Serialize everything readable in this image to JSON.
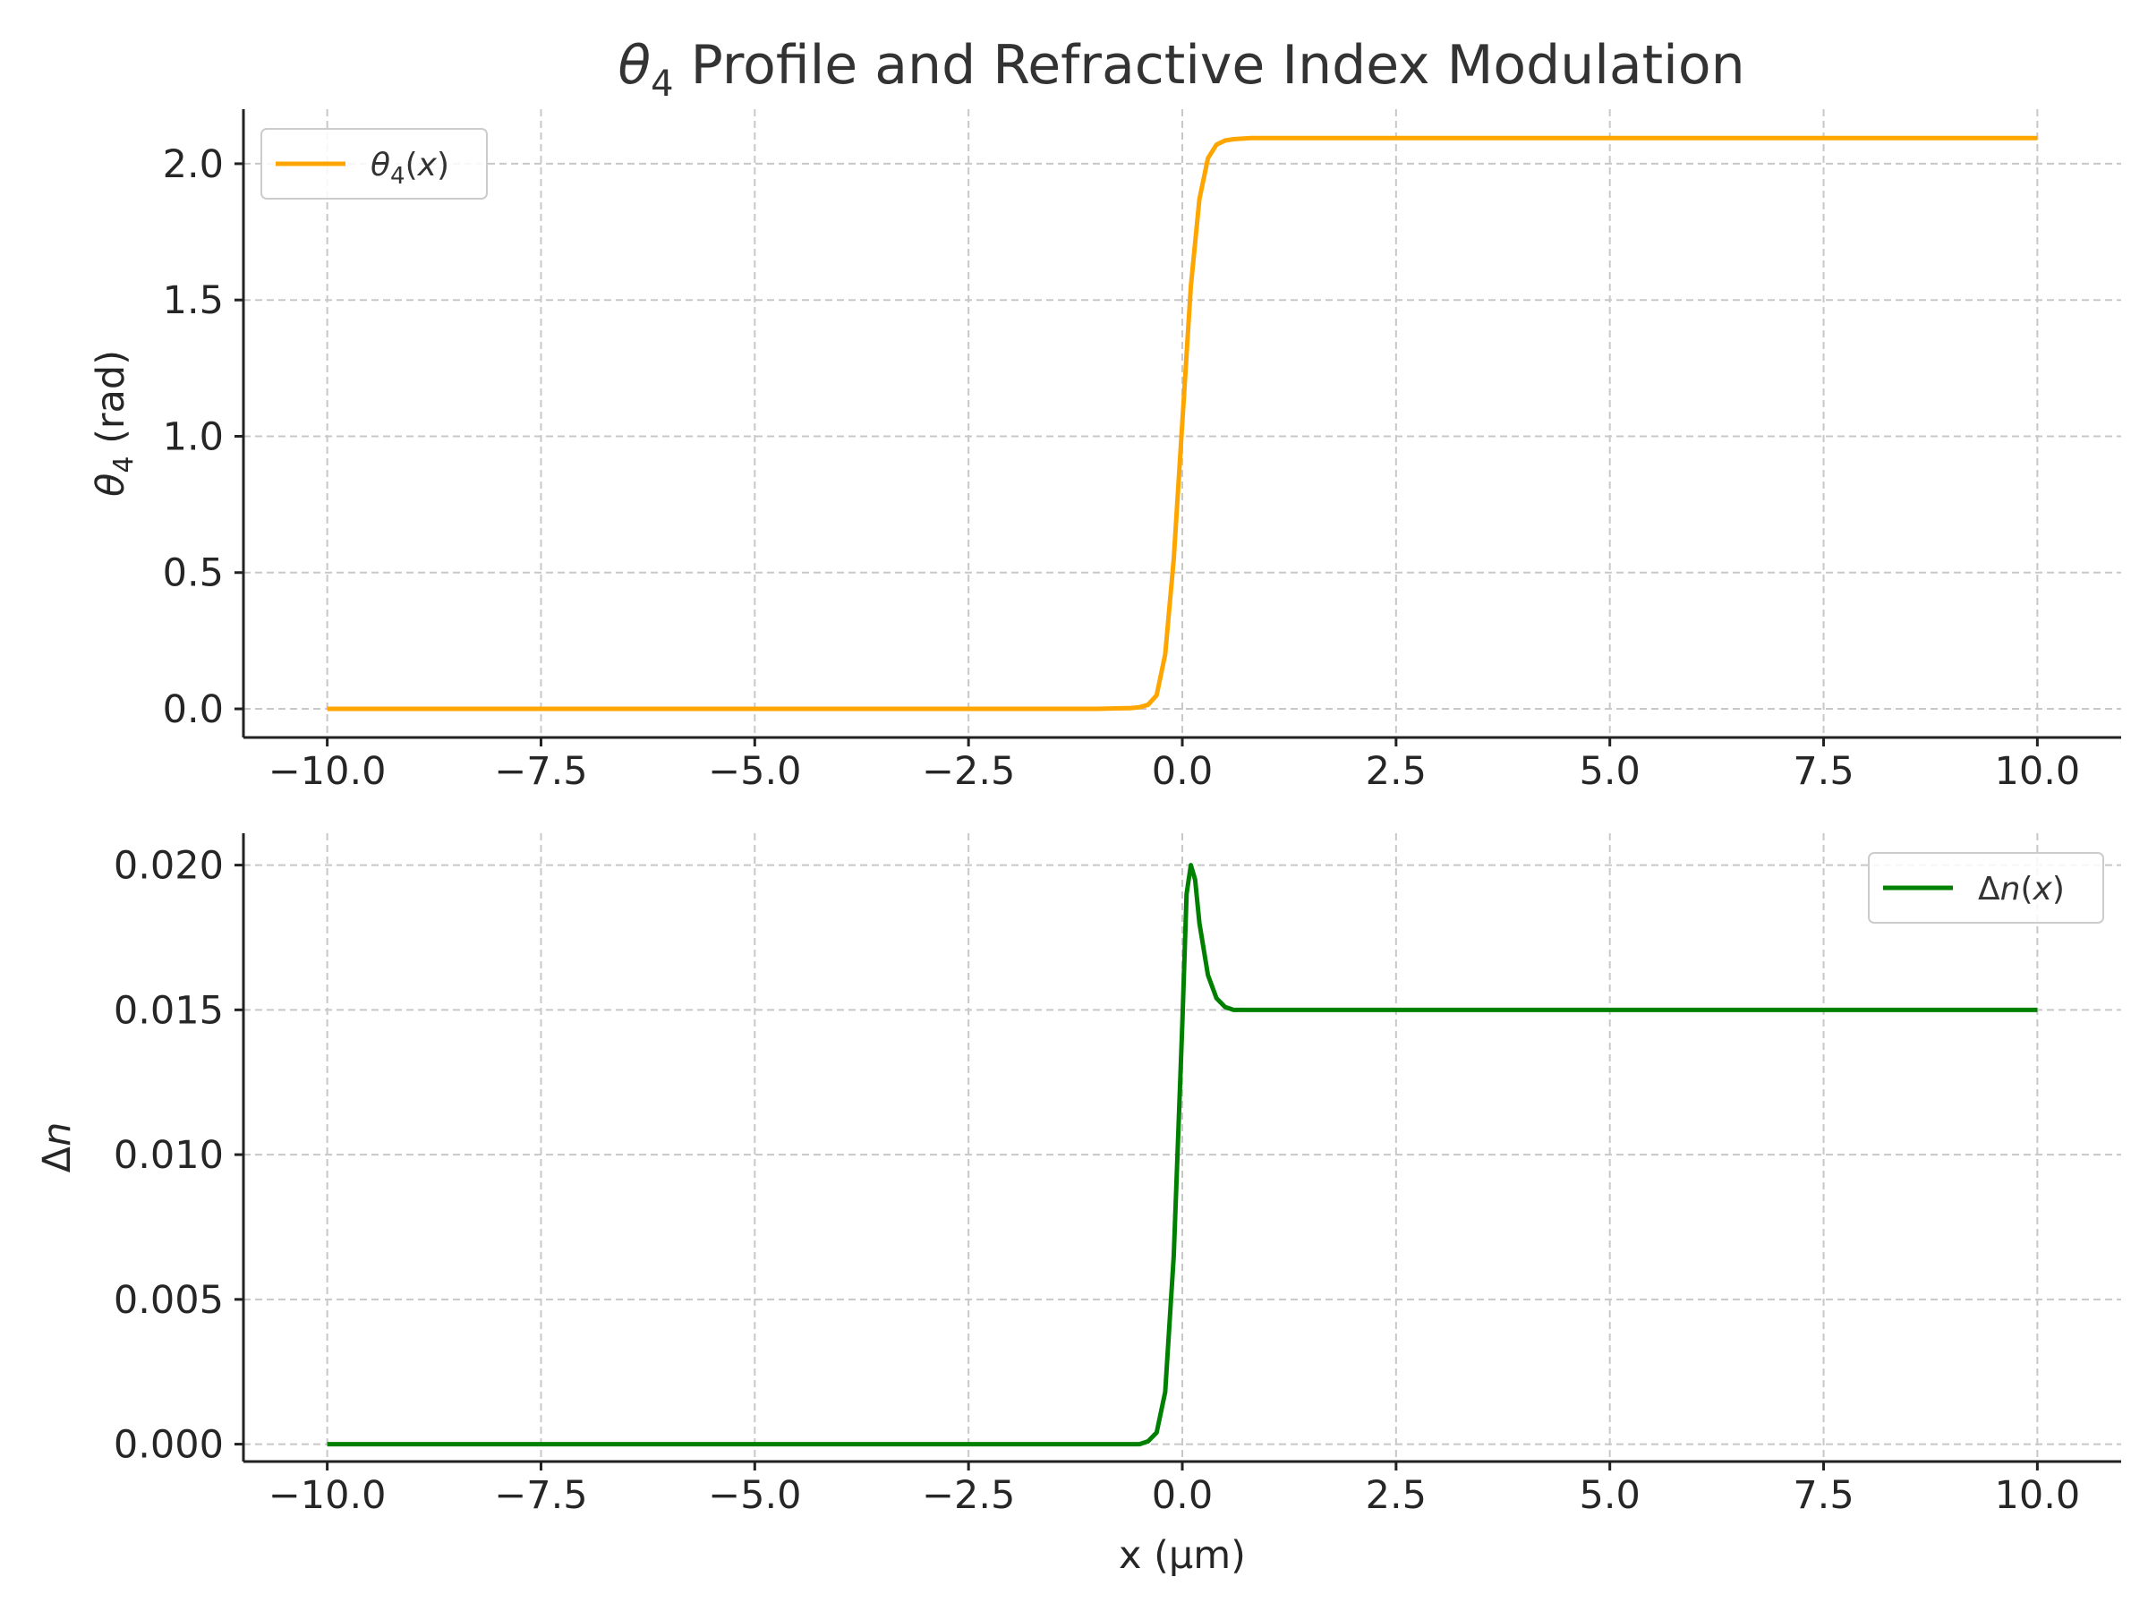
{
  "figure": {
    "title_sym": "θ",
    "title_sub": "4",
    "title_rest": " Profile and Refractive Index Modulation"
  },
  "chart_data": [
    {
      "type": "line",
      "ylabel_sym": "θ",
      "ylabel_sub": "4",
      "ylabel_rest": " (rad)",
      "xlabel": "",
      "xlim": [
        -10.98,
        10.98
      ],
      "ylim": [
        -0.105,
        2.2
      ],
      "xticks": [
        -10.0,
        -7.5,
        -5.0,
        -2.5,
        0.0,
        2.5,
        5.0,
        7.5,
        10.0
      ],
      "xtick_labels": [
        "−10.0",
        "−7.5",
        "−5.0",
        "−2.5",
        "0.0",
        "2.5",
        "5.0",
        "7.5",
        "10.0"
      ],
      "yticks": [
        0.0,
        0.5,
        1.0,
        1.5,
        2.0
      ],
      "ytick_labels": [
        "0.0",
        "0.5",
        "1.0",
        "1.5",
        "2.0"
      ],
      "grid": true,
      "legend_position": "top-left",
      "series": [
        {
          "name_sym": "θ",
          "name_sub": "4",
          "name_rest": "(x)",
          "color": "#FFA500",
          "x": [
            -10.0,
            -2.0,
            -1.0,
            -0.6,
            -0.5,
            -0.4,
            -0.3,
            -0.2,
            -0.1,
            0.0,
            0.1,
            0.2,
            0.3,
            0.4,
            0.5,
            0.6,
            0.8,
            1.0,
            2.0,
            10.0
          ],
          "y": [
            0.0,
            0.0,
            0.0,
            0.003,
            0.006,
            0.015,
            0.05,
            0.2,
            0.55,
            1.05,
            1.55,
            1.87,
            2.02,
            2.07,
            2.085,
            2.09,
            2.094,
            2.094,
            2.094,
            2.094
          ]
        }
      ]
    },
    {
      "type": "line",
      "ylabel_sym": "Δ",
      "ylabel_sub": "",
      "ylabel_rest": "n",
      "xlabel": "x (μm)",
      "xlim": [
        -10.98,
        10.98
      ],
      "ylim": [
        -0.0006,
        0.0211
      ],
      "xticks": [
        -10.0,
        -7.5,
        -5.0,
        -2.5,
        0.0,
        2.5,
        5.0,
        7.5,
        10.0
      ],
      "xtick_labels": [
        "−10.0",
        "−7.5",
        "−5.0",
        "−2.5",
        "0.0",
        "2.5",
        "5.0",
        "7.5",
        "10.0"
      ],
      "yticks": [
        0.0,
        0.005,
        0.01,
        0.015,
        0.02
      ],
      "ytick_labels": [
        "0.000",
        "0.005",
        "0.010",
        "0.015",
        "0.020"
      ],
      "grid": true,
      "legend_position": "top-right",
      "series": [
        {
          "name_sym": "Δ",
          "name_sub": "",
          "name_rest": "n(x)",
          "color": "#008000",
          "x": [
            -10.0,
            -2.0,
            -0.5,
            -0.4,
            -0.3,
            -0.2,
            -0.1,
            0.0,
            0.05,
            0.1,
            0.15,
            0.2,
            0.3,
            0.4,
            0.5,
            0.6,
            0.8,
            1.0,
            2.0,
            10.0
          ],
          "y": [
            0.0,
            0.0,
            0.0,
            0.0001,
            0.0004,
            0.0018,
            0.0065,
            0.0145,
            0.019,
            0.02,
            0.0195,
            0.018,
            0.0162,
            0.0154,
            0.0151,
            0.015,
            0.015,
            0.015,
            0.015,
            0.015
          ]
        }
      ]
    }
  ]
}
